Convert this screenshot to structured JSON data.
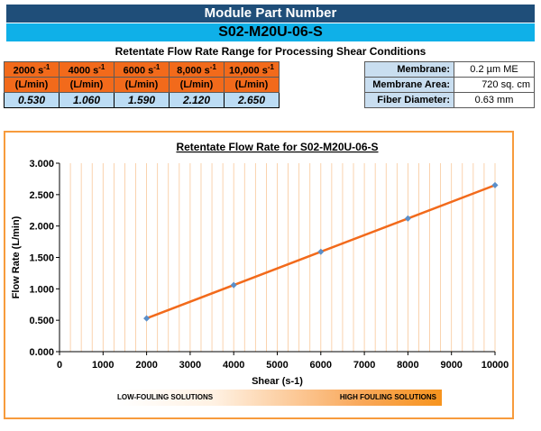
{
  "header": {
    "title": "Module Part Number",
    "part_number": "S02-M20U-06-S",
    "section_title": "Retentate Flow Rate Range for Processing Shear Conditions"
  },
  "flow_table": {
    "columns": [
      {
        "shear_base": "2000 s",
        "shear_exp": "-1",
        "unit": "(L/min)",
        "value": "0.530"
      },
      {
        "shear_base": "4000 s",
        "shear_exp": "-1",
        "unit": "(L/min)",
        "value": "1.060"
      },
      {
        "shear_base": "6000 s",
        "shear_exp": "-1",
        "unit": "(L/min)",
        "value": "1.590"
      },
      {
        "shear_base": "8,000 s",
        "shear_exp": "-1",
        "unit": "(L/min)",
        "value": "2.120"
      },
      {
        "shear_base": "10,000 s",
        "shear_exp": "-1",
        "unit": "(L/min)",
        "value": "2.650"
      }
    ]
  },
  "specs": {
    "membrane_label": "Membrane:",
    "membrane_value": "0.2 µm ME",
    "area_label": "Membrane Area:",
    "area_value": "720 sq. cm",
    "fiber_label": "Fiber Diameter:",
    "fiber_value": "0.63 mm"
  },
  "chart_data": {
    "type": "line",
    "title": "Retentate Flow Rate for S02-M20U-06-S",
    "xlabel": "Shear (s-1)",
    "ylabel": "Flow Rate (L/min)",
    "xlim": [
      0,
      10000
    ],
    "ylim": [
      0,
      3
    ],
    "xticks": [
      0,
      1000,
      2000,
      3000,
      4000,
      5000,
      6000,
      7000,
      8000,
      9000,
      10000
    ],
    "yticks": [
      "0.000",
      "0.500",
      "1.000",
      "1.500",
      "2.000",
      "2.500",
      "3.000"
    ],
    "grid": "vertical",
    "series": [
      {
        "x": [
          2000,
          4000,
          6000,
          8000,
          10000
        ],
        "values": [
          0.53,
          1.06,
          1.59,
          2.12,
          2.65
        ],
        "color": "#f26a1b",
        "marker_color": "#5b8fc9"
      }
    ]
  },
  "fouling": {
    "low_label": "LOW-FOULING SOLUTIONS",
    "high_label": "HIGH FOULING SOLUTIONS"
  }
}
